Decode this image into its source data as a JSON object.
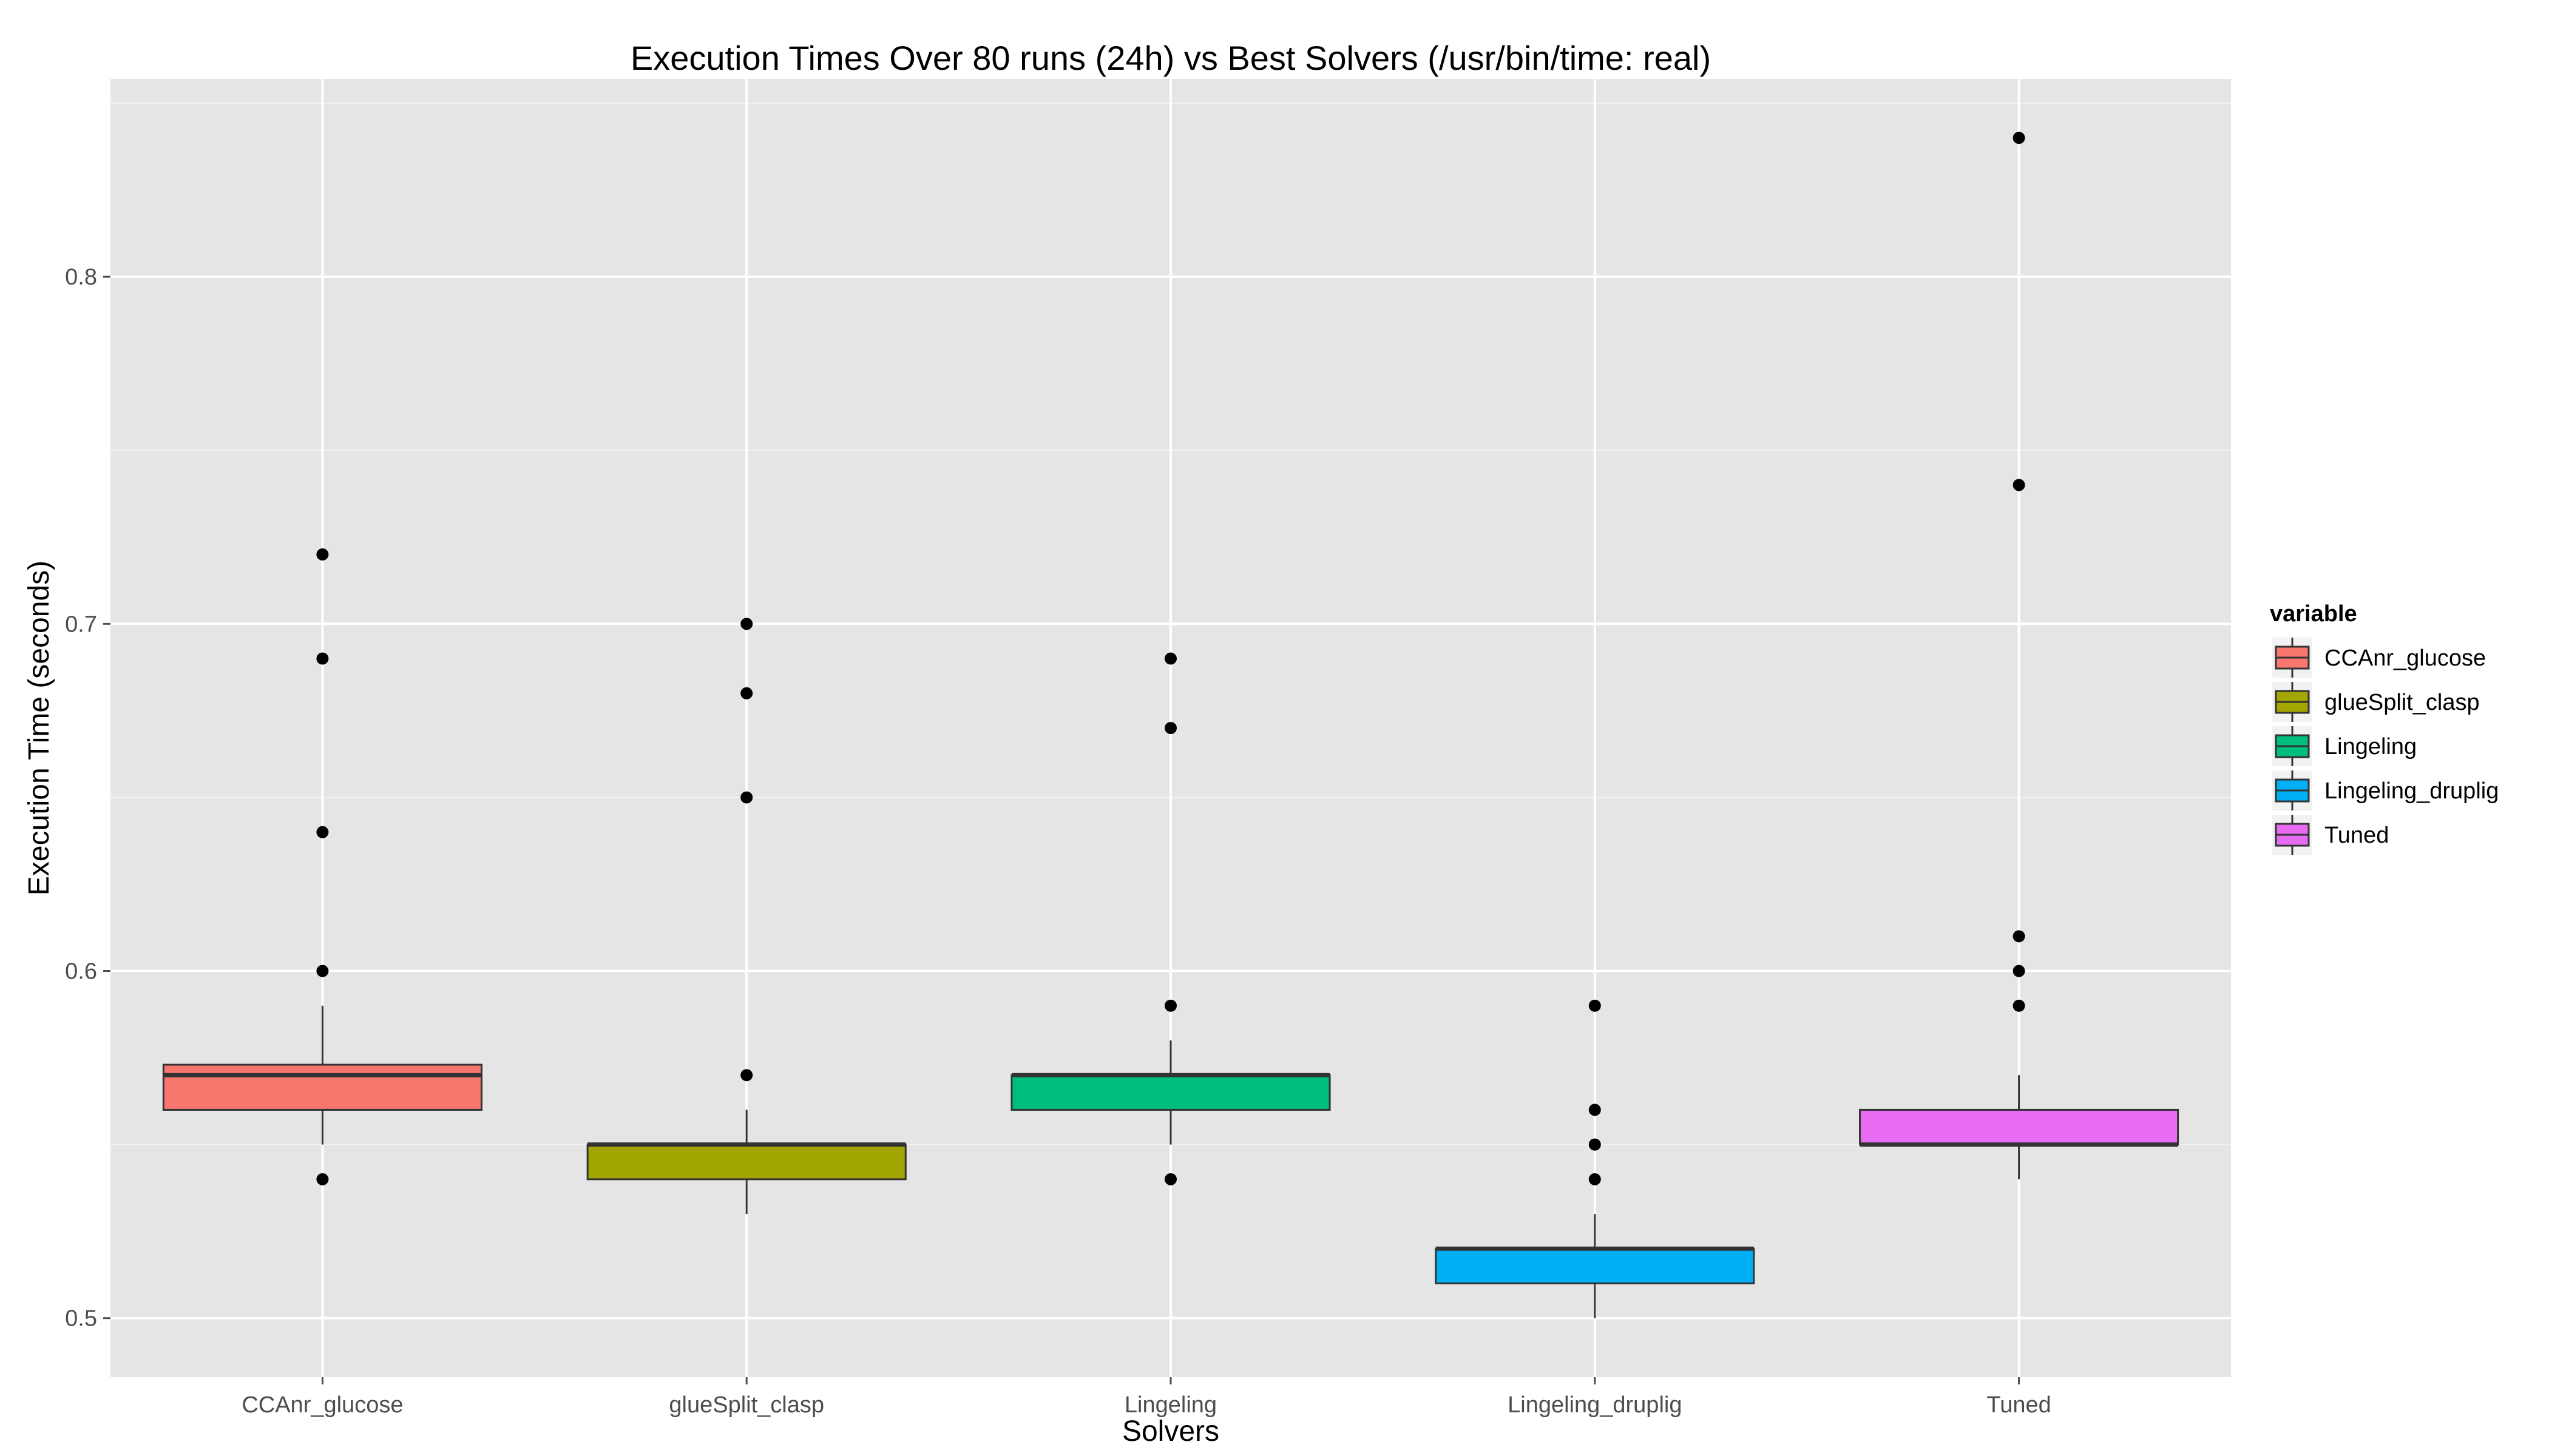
{
  "chart_data": {
    "type": "box",
    "title": "Execution Times Over 80 runs (24h) vs Best Solvers (/usr/bin/time: real)",
    "xlabel": "Solvers",
    "ylabel": "Execution Time (seconds)",
    "ylim": [
      0.483,
      0.857
    ],
    "yticks": [
      0.5,
      0.6,
      0.7,
      0.8
    ],
    "ytick_labels": [
      "0.5",
      "0.6",
      "0.7",
      "0.8"
    ],
    "grid": true,
    "legend": {
      "title": "variable",
      "position": "right"
    },
    "categories": [
      "CCAnr_glucose",
      "glueSplit_clasp",
      "Lingeling",
      "Lingeling_druplig",
      "Tuned"
    ],
    "series": [
      {
        "name": "CCAnr_glucose",
        "color": "#F8766D",
        "whisker_low": 0.55,
        "q1": 0.56,
        "median": 0.57,
        "q3": 0.573,
        "whisker_high": 0.59,
        "outliers": [
          0.54,
          0.6,
          0.64,
          0.69,
          0.72
        ]
      },
      {
        "name": "glueSplit_clasp",
        "color": "#A3A500",
        "whisker_low": 0.53,
        "q1": 0.54,
        "median": 0.55,
        "q3": 0.55,
        "whisker_high": 0.56,
        "outliers": [
          0.57,
          0.65,
          0.68,
          0.7
        ]
      },
      {
        "name": "Lingeling",
        "color": "#00BF7D",
        "whisker_low": 0.55,
        "q1": 0.56,
        "median": 0.57,
        "q3": 0.57,
        "whisker_high": 0.58,
        "outliers": [
          0.54,
          0.59,
          0.67,
          0.69
        ]
      },
      {
        "name": "Lingeling_druplig",
        "color": "#00B0F6",
        "whisker_low": 0.5,
        "q1": 0.51,
        "median": 0.52,
        "q3": 0.52,
        "whisker_high": 0.53,
        "outliers": [
          0.54,
          0.55,
          0.56,
          0.59
        ]
      },
      {
        "name": "Tuned",
        "color": "#E76BF3",
        "whisker_low": 0.54,
        "q1": 0.55,
        "median": 0.55,
        "q3": 0.56,
        "whisker_high": 0.57,
        "outliers": [
          0.59,
          0.6,
          0.61,
          0.74,
          0.84
        ]
      }
    ]
  }
}
